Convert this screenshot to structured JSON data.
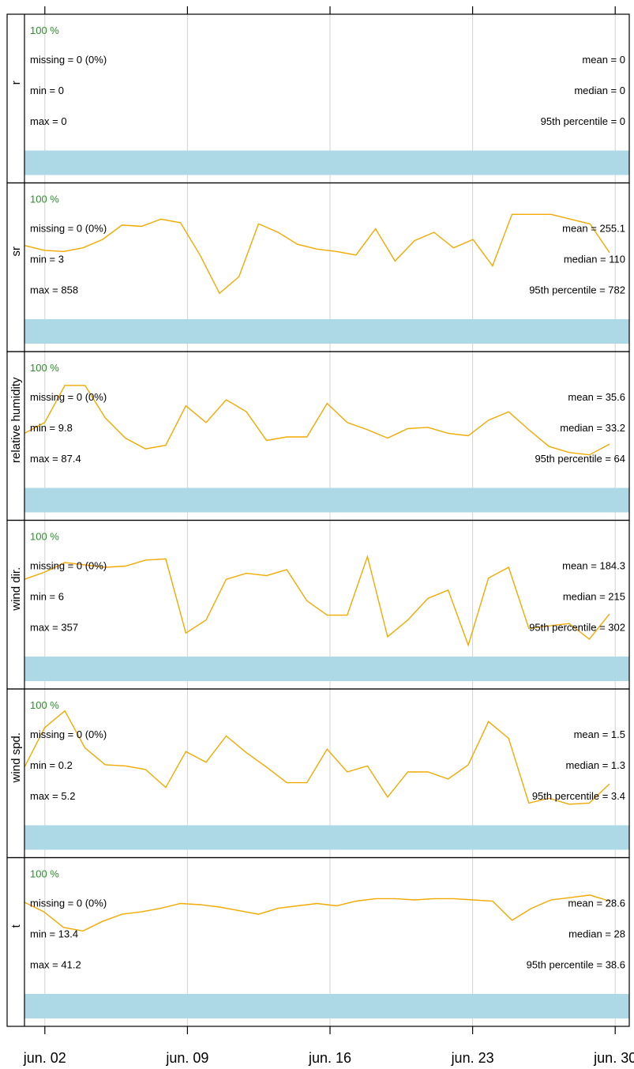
{
  "chart_data": {
    "type": "line",
    "title": "",
    "x_axis": {
      "ticks": [
        "jun. 02",
        "jun. 09",
        "jun. 16",
        "jun. 23",
        "jun. 30"
      ],
      "range": [
        "jun. 01",
        "jun. 30"
      ]
    },
    "grid": true,
    "line_color": "#f2a900",
    "bar_color": "#add8e6",
    "percent_color": "#2e8b2e",
    "panels": [
      {
        "name": "r",
        "percent": "100 %",
        "missing": "missing = 0 (0%)",
        "min": "min = 0",
        "max": "max = 0",
        "mean": "mean = 0",
        "median": "median = 0",
        "p95": "95th percentile = 0",
        "values": []
      },
      {
        "name": "sr",
        "percent": "100 %",
        "missing": "missing = 0 (0%)",
        "min": "min = 3",
        "max": "max = 858",
        "mean": "mean = 255.1",
        "median": "median = 110",
        "p95": "95th percentile = 782",
        "values": [
          0.53,
          0.49,
          0.48,
          0.51,
          0.58,
          0.7,
          0.69,
          0.75,
          0.72,
          0.45,
          0.13,
          0.27,
          0.71,
          0.64,
          0.54,
          0.5,
          0.48,
          0.45,
          0.67,
          0.4,
          0.57,
          0.64,
          0.51,
          0.58,
          0.36,
          0.79,
          0.79,
          0.79,
          0.75,
          0.71,
          0.47
        ]
      },
      {
        "name": "relative humidity",
        "percent": "100 %",
        "missing": "missing = 0 (0%)",
        "min": "min = 9.8",
        "max": "max = 87.4",
        "mean": "mean = 35.6",
        "median": "median = 33.2",
        "p95": "95th percentile = 64",
        "values": [
          0.37,
          0.46,
          0.77,
          0.77,
          0.5,
          0.33,
          0.24,
          0.27,
          0.6,
          0.46,
          0.65,
          0.55,
          0.31,
          0.34,
          0.34,
          0.62,
          0.46,
          0.4,
          0.33,
          0.41,
          0.42,
          0.37,
          0.35,
          0.48,
          0.55,
          0.4,
          0.26,
          0.21,
          0.19,
          0.28
        ]
      },
      {
        "name": "wind dir.",
        "percent": "100 %",
        "missing": "missing = 0 (0%)",
        "min": "min = 6",
        "max": "max = 357",
        "mean": "mean = 184.3",
        "median": "median = 215",
        "p95": "95th percentile = 302",
        "values": [
          0.56,
          0.62,
          0.7,
          0.68,
          0.66,
          0.67,
          0.72,
          0.73,
          0.11,
          0.22,
          0.56,
          0.61,
          0.59,
          0.64,
          0.38,
          0.26,
          0.26,
          0.75,
          0.08,
          0.22,
          0.4,
          0.47,
          0.01,
          0.57,
          0.66,
          0.15,
          0.17,
          0.19,
          0.06,
          0.27
        ]
      },
      {
        "name": "wind spd.",
        "percent": "100 %",
        "missing": "missing = 0 (0%)",
        "min": "min = 0.2",
        "max": "max = 5.2",
        "mean": "mean = 1.5",
        "median": "median = 1.3",
        "p95": "95th percentile = 3.4",
        "values": [
          0.4,
          0.73,
          0.87,
          0.56,
          0.42,
          0.41,
          0.38,
          0.23,
          0.53,
          0.44,
          0.66,
          0.52,
          0.4,
          0.27,
          0.27,
          0.55,
          0.36,
          0.41,
          0.15,
          0.36,
          0.36,
          0.3,
          0.42,
          0.78,
          0.64,
          0.1,
          0.14,
          0.09,
          0.1,
          0.26
        ]
      },
      {
        "name": "t",
        "percent": "100 %",
        "missing": "missing = 0 (0%)",
        "min": "min = 13.4",
        "max": "max = 41.2",
        "mean": "mean = 28.6",
        "median": "median = 28",
        "p95": "95th percentile = 38.6",
        "values": [
          0.68,
          0.6,
          0.47,
          0.44,
          0.52,
          0.58,
          0.6,
          0.63,
          0.67,
          0.66,
          0.64,
          0.61,
          0.58,
          0.63,
          0.65,
          0.67,
          0.65,
          0.69,
          0.71,
          0.71,
          0.7,
          0.71,
          0.71,
          0.7,
          0.69,
          0.53,
          0.63,
          0.7,
          0.72,
          0.74,
          0.69
        ]
      }
    ]
  }
}
